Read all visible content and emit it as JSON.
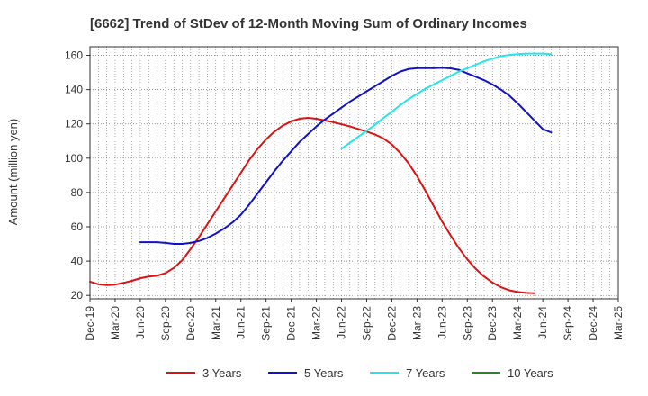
{
  "chart_data": {
    "type": "line",
    "title": "[6662]  Trend of StDev of 12-Month Moving Sum of Ordinary Incomes",
    "xlabel": "",
    "ylabel": "Amount (million yen)",
    "ylim": [
      18,
      165
    ],
    "y_ticks": [
      20,
      40,
      60,
      80,
      100,
      120,
      140,
      160
    ],
    "grid": true,
    "legend_position": "bottom",
    "x_tick_labels": [
      "Dec-19",
      "Mar-20",
      "Jun-20",
      "Sep-20",
      "Dec-20",
      "Mar-21",
      "Jun-21",
      "Sep-21",
      "Dec-21",
      "Mar-22",
      "Jun-22",
      "Sep-22",
      "Dec-22",
      "Mar-23",
      "Jun-23",
      "Sep-23",
      "Dec-23",
      "Mar-24",
      "Jun-24",
      "Sep-24",
      "Dec-24",
      "Mar-25"
    ],
    "series": [
      {
        "name": "3 Years",
        "color": "#dd1111",
        "start_index": 0,
        "values": [
          28,
          26.5,
          26,
          26.3,
          27.3,
          28.5,
          30,
          31,
          31.5,
          33,
          36,
          40.5,
          47,
          54,
          61.5,
          69,
          76.5,
          84,
          91.5,
          99,
          105.5,
          111,
          115.5,
          119,
          121.5,
          123,
          123.5,
          123,
          122,
          121,
          119.8,
          118.5,
          117,
          115.5,
          113.8,
          111.5,
          108,
          103,
          97,
          89.5,
          81,
          72,
          63,
          55,
          47.5,
          41,
          35.5,
          31,
          27.5,
          24.8,
          23,
          22,
          21.5,
          21.3
        ]
      },
      {
        "name": "5 Years",
        "color": "#1111cc",
        "start_index": 6,
        "values": [
          51,
          51,
          51,
          50.6,
          50,
          50,
          50.6,
          51.7,
          53.5,
          56,
          59,
          62.5,
          67,
          73,
          79.5,
          86,
          92.5,
          98.5,
          104,
          109.5,
          114,
          118.5,
          122.5,
          126,
          129.5,
          133,
          136,
          139,
          142,
          145,
          148,
          150.5,
          152,
          152.5,
          152.5,
          152.5,
          152.7,
          152.4,
          151.5,
          149.5,
          147.5,
          145.5,
          143,
          140,
          136.5,
          132,
          127,
          122,
          117,
          115
        ]
      },
      {
        "name": "7 Years",
        "color": "#22e5ee",
        "start_index": 30,
        "values": [
          105.5,
          109,
          112.5,
          116,
          119.5,
          123.5,
          127,
          131,
          134.5,
          137.5,
          140.5,
          143,
          145.5,
          148,
          150.5,
          152.5,
          154.5,
          156.5,
          158,
          159.5,
          160.2,
          160.7,
          161,
          161,
          161,
          160.7
        ]
      },
      {
        "name": "10 Years",
        "color": "#228822",
        "start_index": null,
        "values": []
      }
    ]
  }
}
